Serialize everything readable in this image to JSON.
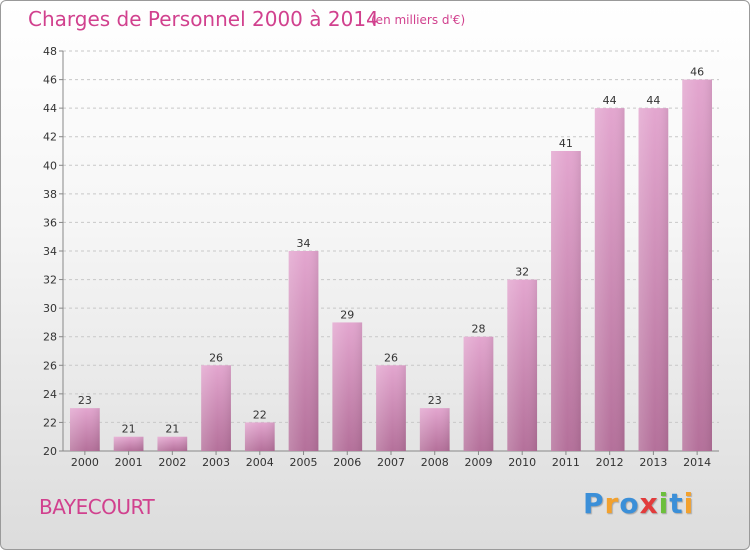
{
  "title": "Charges de Personnel 2000 à 2014",
  "subtitle": "(en milliers d'€)",
  "commune": "BAYECOURT",
  "logo": {
    "letters": [
      "P",
      "r",
      "o",
      "x",
      "i",
      "t",
      "i"
    ],
    "colors": [
      "#3b8fd8",
      "#f2a12e",
      "#3b8fd8",
      "#e23b3b",
      "#6cbf3c",
      "#3b8fd8",
      "#f2a12e"
    ]
  },
  "colors": {
    "bar_top": "#e3a6cf",
    "bar_bottom": "#b4709a",
    "accent": "#d1418e"
  },
  "chart_data": {
    "type": "bar",
    "title": "Charges de Personnel 2000 à 2014",
    "categories": [
      "2000",
      "2001",
      "2002",
      "2003",
      "2004",
      "2005",
      "2006",
      "2007",
      "2008",
      "2009",
      "2010",
      "2011",
      "2012",
      "2013",
      "2014"
    ],
    "values": [
      23,
      21,
      21,
      26,
      22,
      34,
      29,
      26,
      23,
      28,
      32,
      41,
      44,
      44,
      46
    ],
    "ylim": [
      20,
      48
    ],
    "yticks": [
      20,
      22,
      24,
      26,
      28,
      30,
      32,
      34,
      36,
      38,
      40,
      42,
      44,
      46,
      48
    ],
    "grid": true,
    "data_labels": true
  }
}
